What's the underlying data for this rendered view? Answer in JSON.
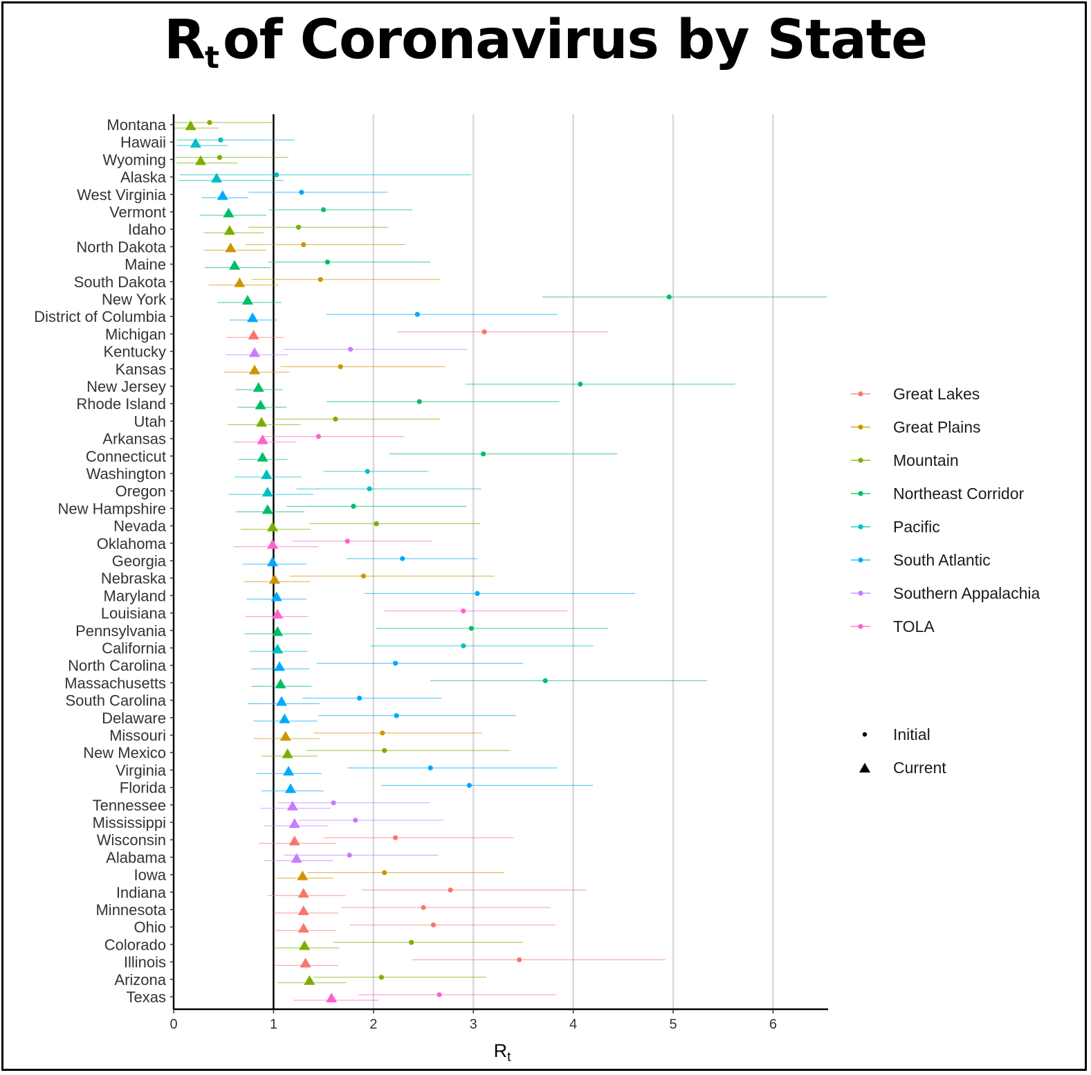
{
  "chart_data": {
    "type": "scatter",
    "title": {
      "main": "R",
      "subscript": "t",
      "rest": "of Coronavirus by State"
    },
    "xlabel": {
      "main": "R",
      "subscript": "t"
    },
    "ylabel": "",
    "xlim": [
      0,
      6.55
    ],
    "xticks": [
      0,
      1,
      2,
      3,
      4,
      5,
      6
    ],
    "reference_line": 1,
    "grid": "vertical major lines",
    "legend_position": "right",
    "regions": [
      {
        "name": "Great Lakes",
        "color": "#F8766D"
      },
      {
        "name": "Great Plains",
        "color": "#CD9600"
      },
      {
        "name": "Mountain",
        "color": "#7CAE00"
      },
      {
        "name": "Northeast Corridor",
        "color": "#00BE67"
      },
      {
        "name": "Pacific",
        "color": "#00BFC4"
      },
      {
        "name": "South Atlantic",
        "color": "#00A9FF"
      },
      {
        "name": "Southern Appalachia",
        "color": "#C77CFF"
      },
      {
        "name": "TOLA",
        "color": "#FF61CC"
      }
    ],
    "shape_legend": [
      {
        "name": "Initial",
        "shape": "circle"
      },
      {
        "name": "Current",
        "shape": "triangle"
      }
    ],
    "states": [
      {
        "state": "Montana",
        "region": "Mountain",
        "initial": 0.36,
        "initial_lo": 0.0,
        "initial_hi": 1.0,
        "current": 0.17,
        "current_lo": 0.0,
        "current_hi": 0.45
      },
      {
        "state": "Hawaii",
        "region": "Pacific",
        "initial": 0.47,
        "initial_lo": 0.03,
        "initial_hi": 1.21,
        "current": 0.22,
        "current_lo": 0.03,
        "current_hi": 0.54
      },
      {
        "state": "Wyoming",
        "region": "Mountain",
        "initial": 0.46,
        "initial_lo": 0.02,
        "initial_hi": 1.15,
        "current": 0.27,
        "current_lo": 0.03,
        "current_hi": 0.64
      },
      {
        "state": "Alaska",
        "region": "Pacific",
        "initial": 1.03,
        "initial_lo": 0.06,
        "initial_hi": 2.98,
        "current": 0.43,
        "current_lo": 0.05,
        "current_hi": 1.1
      },
      {
        "state": "West Virginia",
        "region": "South Atlantic",
        "initial": 1.28,
        "initial_lo": 0.75,
        "initial_hi": 2.14,
        "current": 0.49,
        "current_lo": 0.28,
        "current_hi": 0.74
      },
      {
        "state": "Vermont",
        "region": "Northeast Corridor",
        "initial": 1.5,
        "initial_lo": 0.95,
        "initial_hi": 2.39,
        "current": 0.55,
        "current_lo": 0.26,
        "current_hi": 0.93
      },
      {
        "state": "Idaho",
        "region": "Mountain",
        "initial": 1.25,
        "initial_lo": 0.75,
        "initial_hi": 2.15,
        "current": 0.56,
        "current_lo": 0.3,
        "current_hi": 0.9
      },
      {
        "state": "North Dakota",
        "region": "Great Plains",
        "initial": 1.3,
        "initial_lo": 0.72,
        "initial_hi": 2.32,
        "current": 0.57,
        "current_lo": 0.3,
        "current_hi": 0.93
      },
      {
        "state": "Maine",
        "region": "Northeast Corridor",
        "initial": 1.54,
        "initial_lo": 0.95,
        "initial_hi": 2.57,
        "current": 0.61,
        "current_lo": 0.31,
        "current_hi": 0.97
      },
      {
        "state": "South Dakota",
        "region": "Great Plains",
        "initial": 1.47,
        "initial_lo": 0.78,
        "initial_hi": 2.67,
        "current": 0.66,
        "current_lo": 0.35,
        "current_hi": 1.05
      },
      {
        "state": "New York",
        "region": "Northeast Corridor",
        "initial": 4.96,
        "initial_lo": 3.69,
        "initial_hi": 6.54,
        "current": 0.74,
        "current_lo": 0.44,
        "current_hi": 1.08
      },
      {
        "state": "District of Columbia",
        "region": "South Atlantic",
        "initial": 2.44,
        "initial_lo": 1.53,
        "initial_hi": 3.84,
        "current": 0.79,
        "current_lo": 0.56,
        "current_hi": 1.04
      },
      {
        "state": "Michigan",
        "region": "Great Lakes",
        "initial": 3.11,
        "initial_lo": 2.24,
        "initial_hi": 4.35,
        "current": 0.8,
        "current_lo": 0.53,
        "current_hi": 1.1
      },
      {
        "state": "Kentucky",
        "region": "Southern Appalachia",
        "initial": 1.77,
        "initial_lo": 1.1,
        "initial_hi": 2.94,
        "current": 0.81,
        "current_lo": 0.52,
        "current_hi": 1.14
      },
      {
        "state": "Kansas",
        "region": "Great Plains",
        "initial": 1.67,
        "initial_lo": 1.07,
        "initial_hi": 2.72,
        "current": 0.81,
        "current_lo": 0.5,
        "current_hi": 1.16
      },
      {
        "state": "New Jersey",
        "region": "Northeast Corridor",
        "initial": 4.07,
        "initial_lo": 2.92,
        "initial_hi": 5.62,
        "current": 0.85,
        "current_lo": 0.62,
        "current_hi": 1.09
      },
      {
        "state": "Rhode Island",
        "region": "Northeast Corridor",
        "initial": 2.46,
        "initial_lo": 1.53,
        "initial_hi": 3.86,
        "current": 0.87,
        "current_lo": 0.64,
        "current_hi": 1.13
      },
      {
        "state": "Utah",
        "region": "Mountain",
        "initial": 1.62,
        "initial_lo": 0.98,
        "initial_hi": 2.67,
        "current": 0.88,
        "current_lo": 0.54,
        "current_hi": 1.27
      },
      {
        "state": "Arkansas",
        "region": "TOLA",
        "initial": 1.45,
        "initial_lo": 0.9,
        "initial_hi": 2.31,
        "current": 0.89,
        "current_lo": 0.6,
        "current_hi": 1.22
      },
      {
        "state": "Connecticut",
        "region": "Northeast Corridor",
        "initial": 3.1,
        "initial_lo": 2.16,
        "initial_hi": 4.44,
        "current": 0.89,
        "current_lo": 0.65,
        "current_hi": 1.14
      },
      {
        "state": "Washington",
        "region": "Pacific",
        "initial": 1.94,
        "initial_lo": 1.5,
        "initial_hi": 2.55,
        "current": 0.93,
        "current_lo": 0.61,
        "current_hi": 1.28
      },
      {
        "state": "Oregon",
        "region": "Pacific",
        "initial": 1.96,
        "initial_lo": 1.23,
        "initial_hi": 3.08,
        "current": 0.94,
        "current_lo": 0.55,
        "current_hi": 1.4
      },
      {
        "state": "New Hampshire",
        "region": "Northeast Corridor",
        "initial": 1.8,
        "initial_lo": 1.13,
        "initial_hi": 2.93,
        "current": 0.94,
        "current_lo": 0.62,
        "current_hi": 1.31
      },
      {
        "state": "Nevada",
        "region": "Mountain",
        "initial": 2.03,
        "initial_lo": 1.36,
        "initial_hi": 3.07,
        "current": 0.99,
        "current_lo": 0.67,
        "current_hi": 1.37
      },
      {
        "state": "Oklahoma",
        "region": "TOLA",
        "initial": 1.74,
        "initial_lo": 1.19,
        "initial_hi": 2.59,
        "current": 0.99,
        "current_lo": 0.6,
        "current_hi": 1.45
      },
      {
        "state": "Georgia",
        "region": "South Atlantic",
        "initial": 2.29,
        "initial_lo": 1.73,
        "initial_hi": 3.04,
        "current": 0.99,
        "current_lo": 0.69,
        "current_hi": 1.33
      },
      {
        "state": "Nebraska",
        "region": "Great Plains",
        "initial": 1.9,
        "initial_lo": 1.16,
        "initial_hi": 3.21,
        "current": 1.01,
        "current_lo": 0.7,
        "current_hi": 1.37
      },
      {
        "state": "Maryland",
        "region": "South Atlantic",
        "initial": 3.04,
        "initial_lo": 1.91,
        "initial_hi": 4.62,
        "current": 1.03,
        "current_lo": 0.73,
        "current_hi": 1.33
      },
      {
        "state": "Louisiana",
        "region": "TOLA",
        "initial": 2.9,
        "initial_lo": 2.11,
        "initial_hi": 3.94,
        "current": 1.04,
        "current_lo": 0.72,
        "current_hi": 1.35
      },
      {
        "state": "Pennsylvania",
        "region": "Northeast Corridor",
        "initial": 2.98,
        "initial_lo": 2.03,
        "initial_hi": 4.35,
        "current": 1.04,
        "current_lo": 0.71,
        "current_hi": 1.38
      },
      {
        "state": "California",
        "region": "Pacific",
        "initial": 2.9,
        "initial_lo": 1.97,
        "initial_hi": 4.2,
        "current": 1.04,
        "current_lo": 0.76,
        "current_hi": 1.34
      },
      {
        "state": "North Carolina",
        "region": "South Atlantic",
        "initial": 2.22,
        "initial_lo": 1.43,
        "initial_hi": 3.5,
        "current": 1.06,
        "current_lo": 0.78,
        "current_hi": 1.36
      },
      {
        "state": "Massachusetts",
        "region": "Northeast Corridor",
        "initial": 3.72,
        "initial_lo": 2.57,
        "initial_hi": 5.34,
        "current": 1.07,
        "current_lo": 0.78,
        "current_hi": 1.38
      },
      {
        "state": "South Carolina",
        "region": "South Atlantic",
        "initial": 1.86,
        "initial_lo": 1.29,
        "initial_hi": 2.68,
        "current": 1.08,
        "current_lo": 0.74,
        "current_hi": 1.46
      },
      {
        "state": "Delaware",
        "region": "South Atlantic",
        "initial": 2.23,
        "initial_lo": 1.45,
        "initial_hi": 3.43,
        "current": 1.11,
        "current_lo": 0.8,
        "current_hi": 1.44
      },
      {
        "state": "Missouri",
        "region": "Great Plains",
        "initial": 2.09,
        "initial_lo": 1.4,
        "initial_hi": 3.09,
        "current": 1.12,
        "current_lo": 0.8,
        "current_hi": 1.46
      },
      {
        "state": "New Mexico",
        "region": "Mountain",
        "initial": 2.11,
        "initial_lo": 1.33,
        "initial_hi": 3.37,
        "current": 1.14,
        "current_lo": 0.88,
        "current_hi": 1.44
      },
      {
        "state": "Virginia",
        "region": "South Atlantic",
        "initial": 2.57,
        "initial_lo": 1.74,
        "initial_hi": 3.84,
        "current": 1.15,
        "current_lo": 0.83,
        "current_hi": 1.48
      },
      {
        "state": "Florida",
        "region": "South Atlantic",
        "initial": 2.96,
        "initial_lo": 2.08,
        "initial_hi": 4.2,
        "current": 1.17,
        "current_lo": 0.88,
        "current_hi": 1.5
      },
      {
        "state": "Tennessee",
        "region": "Southern Appalachia",
        "initial": 1.6,
        "initial_lo": 1.04,
        "initial_hi": 2.56,
        "current": 1.19,
        "current_lo": 0.87,
        "current_hi": 1.57
      },
      {
        "state": "Mississippi",
        "region": "Southern Appalachia",
        "initial": 1.82,
        "initial_lo": 1.25,
        "initial_hi": 2.7,
        "current": 1.21,
        "current_lo": 0.9,
        "current_hi": 1.55
      },
      {
        "state": "Wisconsin",
        "region": "Great Lakes",
        "initial": 2.22,
        "initial_lo": 1.5,
        "initial_hi": 3.4,
        "current": 1.21,
        "current_lo": 0.85,
        "current_hi": 1.63
      },
      {
        "state": "Alabama",
        "region": "Southern Appalachia",
        "initial": 1.76,
        "initial_lo": 1.11,
        "initial_hi": 2.65,
        "current": 1.23,
        "current_lo": 0.9,
        "current_hi": 1.6
      },
      {
        "state": "Iowa",
        "region": "Great Plains",
        "initial": 2.11,
        "initial_lo": 1.34,
        "initial_hi": 3.31,
        "current": 1.29,
        "current_lo": 1.03,
        "current_hi": 1.6
      },
      {
        "state": "Indiana",
        "region": "Great Lakes",
        "initial": 2.77,
        "initial_lo": 1.88,
        "initial_hi": 4.13,
        "current": 1.3,
        "current_lo": 0.94,
        "current_hi": 1.72
      },
      {
        "state": "Minnesota",
        "region": "Great Lakes",
        "initial": 2.5,
        "initial_lo": 1.68,
        "initial_hi": 3.77,
        "current": 1.3,
        "current_lo": 1.0,
        "current_hi": 1.65
      },
      {
        "state": "Ohio",
        "region": "Great Lakes",
        "initial": 2.6,
        "initial_lo": 1.76,
        "initial_hi": 3.82,
        "current": 1.3,
        "current_lo": 1.0,
        "current_hi": 1.63
      },
      {
        "state": "Colorado",
        "region": "Mountain",
        "initial": 2.38,
        "initial_lo": 1.6,
        "initial_hi": 3.5,
        "current": 1.31,
        "current_lo": 1.0,
        "current_hi": 1.66
      },
      {
        "state": "Illinois",
        "region": "Great Lakes",
        "initial": 3.46,
        "initial_lo": 2.39,
        "initial_hi": 4.92,
        "current": 1.32,
        "current_lo": 1.01,
        "current_hi": 1.65
      },
      {
        "state": "Arizona",
        "region": "Mountain",
        "initial": 2.08,
        "initial_lo": 1.4,
        "initial_hi": 3.13,
        "current": 1.36,
        "current_lo": 1.04,
        "current_hi": 1.73
      },
      {
        "state": "Texas",
        "region": "TOLA",
        "initial": 2.66,
        "initial_lo": 1.85,
        "initial_hi": 3.83,
        "current": 1.58,
        "current_lo": 1.2,
        "current_hi": 2.05
      }
    ]
  }
}
